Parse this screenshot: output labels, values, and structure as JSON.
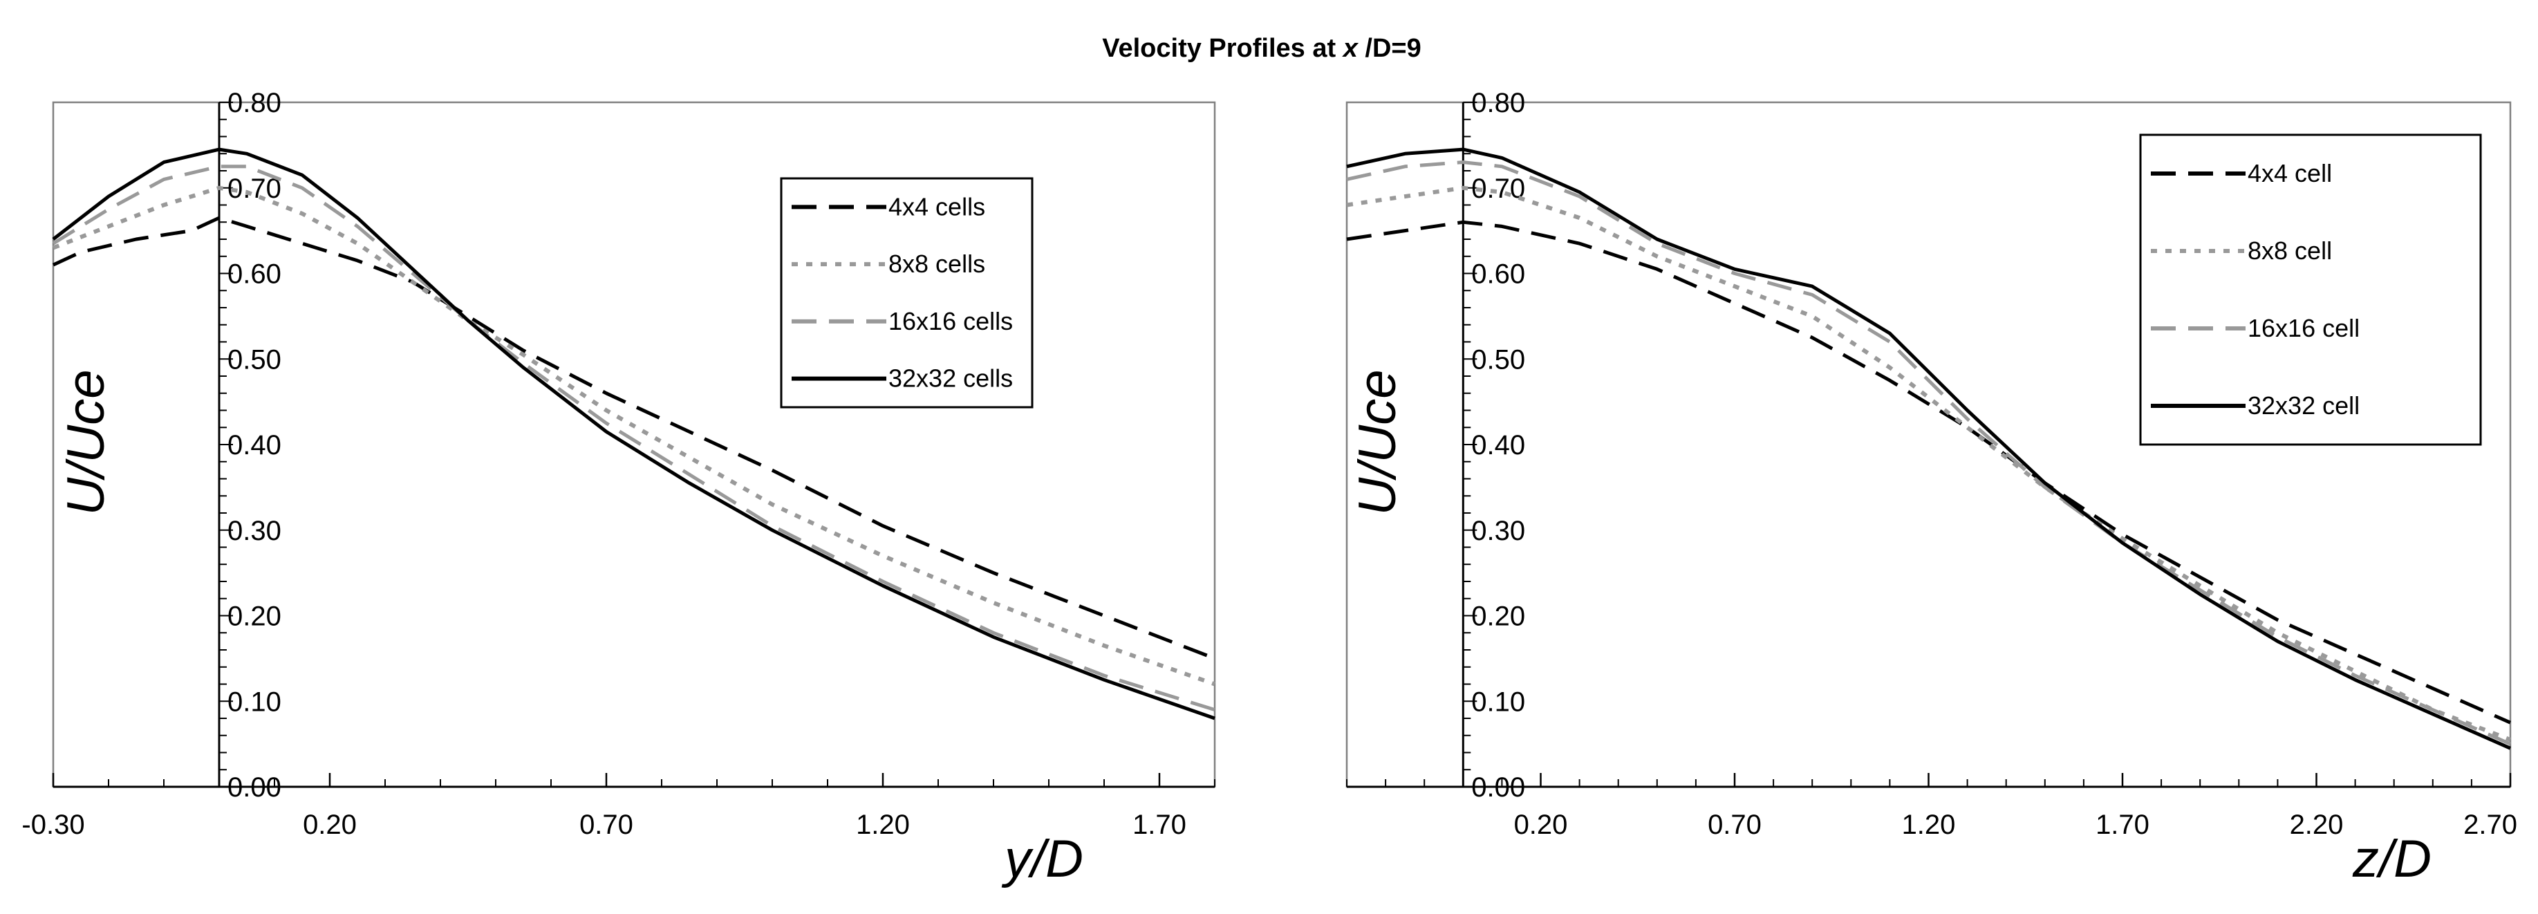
{
  "figure_title": {
    "prefix": "Velocity Profiles at ",
    "var": "x",
    "suffix": " /D=9"
  },
  "chart_data": [
    {
      "type": "line",
      "title": "",
      "xlabel": "y/D",
      "ylabel": "U/Uce",
      "xlim": [
        -0.3,
        1.8
      ],
      "ylim": [
        0.0,
        0.8
      ],
      "x_ticks": [
        -0.3,
        0.2,
        0.7,
        1.2,
        1.7
      ],
      "x_tick_labels": [
        "-0.30",
        "0.20",
        "0.70",
        "1.20",
        "1.70"
      ],
      "y_ticks": [
        0.0,
        0.1,
        0.2,
        0.3,
        0.4,
        0.5,
        0.6,
        0.7,
        0.8
      ],
      "y_tick_labels": [
        "0.00",
        "0.10",
        "0.20",
        "0.30",
        "0.40",
        "0.50",
        "0.60",
        "0.70",
        "0.80"
      ],
      "legend_position": "top-right",
      "series": [
        {
          "name": "4x4 cells",
          "style": "long-dash",
          "color": "#000000",
          "x": [
            -0.3,
            -0.25,
            -0.15,
            -0.05,
            0.0,
            0.05,
            0.15,
            0.25,
            0.35,
            0.45,
            0.55,
            0.7,
            0.85,
            1.0,
            1.2,
            1.4,
            1.6,
            1.8
          ],
          "values": [
            0.61,
            0.625,
            0.64,
            0.65,
            0.665,
            0.655,
            0.635,
            0.615,
            0.59,
            0.55,
            0.51,
            0.46,
            0.415,
            0.37,
            0.305,
            0.25,
            0.2,
            0.15
          ]
        },
        {
          "name": "8x8 cells",
          "style": "dotted",
          "color": "#999999",
          "x": [
            -0.3,
            -0.2,
            -0.1,
            0.0,
            0.05,
            0.15,
            0.25,
            0.35,
            0.45,
            0.55,
            0.7,
            0.85,
            1.0,
            1.2,
            1.4,
            1.6,
            1.8
          ],
          "values": [
            0.63,
            0.655,
            0.68,
            0.7,
            0.695,
            0.67,
            0.635,
            0.59,
            0.545,
            0.505,
            0.44,
            0.385,
            0.33,
            0.27,
            0.215,
            0.165,
            0.12
          ]
        },
        {
          "name": "16x16 cells",
          "style": "long-dash",
          "color": "#999999",
          "x": [
            -0.3,
            -0.2,
            -0.1,
            0.0,
            0.05,
            0.15,
            0.25,
            0.35,
            0.45,
            0.55,
            0.7,
            0.85,
            1.0,
            1.2,
            1.4,
            1.6,
            1.8
          ],
          "values": [
            0.635,
            0.675,
            0.71,
            0.725,
            0.725,
            0.7,
            0.655,
            0.6,
            0.545,
            0.495,
            0.425,
            0.365,
            0.305,
            0.24,
            0.18,
            0.13,
            0.09
          ]
        },
        {
          "name": "32x32 cells",
          "style": "solid",
          "color": "#000000",
          "x": [
            -0.3,
            -0.2,
            -0.1,
            0.0,
            0.05,
            0.15,
            0.25,
            0.35,
            0.45,
            0.55,
            0.7,
            0.85,
            1.0,
            1.2,
            1.4,
            1.6,
            1.8
          ],
          "values": [
            0.64,
            0.69,
            0.73,
            0.745,
            0.74,
            0.715,
            0.665,
            0.605,
            0.545,
            0.49,
            0.415,
            0.355,
            0.3,
            0.235,
            0.175,
            0.125,
            0.08
          ]
        }
      ]
    },
    {
      "type": "line",
      "title": "",
      "xlabel": "z/D",
      "ylabel": "U/Uce",
      "xlim": [
        -0.3,
        2.7
      ],
      "ylim": [
        0.0,
        0.8
      ],
      "x_ticks": [
        0.2,
        0.7,
        1.2,
        1.7,
        2.2,
        2.7
      ],
      "x_tick_labels": [
        "0.20",
        "0.70",
        "1.20",
        "1.70",
        "2.20",
        "2.70"
      ],
      "y_ticks": [
        0.0,
        0.1,
        0.2,
        0.3,
        0.4,
        0.5,
        0.6,
        0.7,
        0.8
      ],
      "y_tick_labels": [
        "0.00",
        "0.10",
        "0.20",
        "0.30",
        "0.40",
        "0.50",
        "0.60",
        "0.70",
        "0.80"
      ],
      "legend_position": "top-right",
      "series": [
        {
          "name": "4x4 cell",
          "style": "long-dash",
          "color": "#000000",
          "x": [
            -0.3,
            -0.15,
            0.0,
            0.1,
            0.3,
            0.5,
            0.7,
            0.9,
            1.1,
            1.3,
            1.5,
            1.7,
            1.9,
            2.1,
            2.3,
            2.5,
            2.7
          ],
          "values": [
            0.64,
            0.65,
            0.66,
            0.655,
            0.635,
            0.605,
            0.565,
            0.525,
            0.475,
            0.42,
            0.355,
            0.295,
            0.245,
            0.195,
            0.155,
            0.115,
            0.075
          ]
        },
        {
          "name": "8x8 cell",
          "style": "dotted",
          "color": "#999999",
          "x": [
            -0.3,
            -0.15,
            0.0,
            0.1,
            0.3,
            0.5,
            0.7,
            0.9,
            1.1,
            1.3,
            1.5,
            1.7,
            1.9,
            2.1,
            2.3,
            2.5,
            2.7
          ],
          "values": [
            0.68,
            0.69,
            0.7,
            0.695,
            0.665,
            0.62,
            0.585,
            0.55,
            0.49,
            0.42,
            0.35,
            0.29,
            0.235,
            0.18,
            0.135,
            0.09,
            0.055
          ]
        },
        {
          "name": "16x16 cell",
          "style": "long-dash",
          "color": "#999999",
          "x": [
            -0.3,
            -0.15,
            0.0,
            0.1,
            0.3,
            0.5,
            0.7,
            0.9,
            1.1,
            1.3,
            1.5,
            1.7,
            1.9,
            2.1,
            2.3,
            2.5,
            2.7
          ],
          "values": [
            0.71,
            0.725,
            0.73,
            0.725,
            0.69,
            0.635,
            0.6,
            0.575,
            0.52,
            0.43,
            0.35,
            0.285,
            0.23,
            0.175,
            0.13,
            0.09,
            0.05
          ]
        },
        {
          "name": "32x32 cell",
          "style": "solid",
          "color": "#000000",
          "x": [
            -0.3,
            -0.15,
            0.0,
            0.1,
            0.3,
            0.5,
            0.7,
            0.9,
            1.1,
            1.3,
            1.5,
            1.7,
            1.9,
            2.1,
            2.3,
            2.5,
            2.7
          ],
          "values": [
            0.725,
            0.74,
            0.745,
            0.735,
            0.695,
            0.64,
            0.605,
            0.585,
            0.53,
            0.44,
            0.355,
            0.285,
            0.225,
            0.17,
            0.125,
            0.085,
            0.045
          ]
        }
      ]
    }
  ]
}
